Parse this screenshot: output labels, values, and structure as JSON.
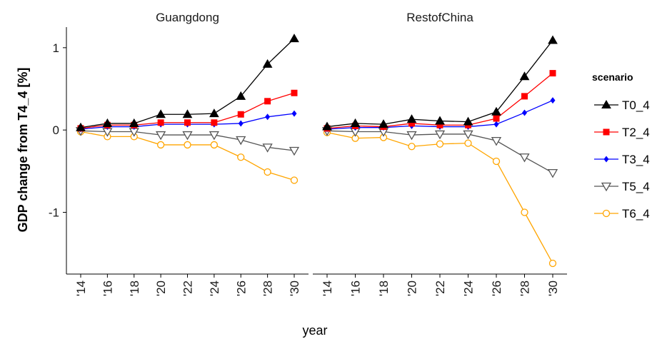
{
  "chart_data": {
    "type": "line",
    "xlabel": "year",
    "ylabel": "GDP change from T4_4 [%]",
    "ylim": [
      -1.75,
      1.25
    ],
    "yticks": [
      -1,
      0,
      1
    ],
    "x": [
      "'14",
      "'16",
      "'18",
      "'20",
      "'22",
      "'24",
      "'26",
      "'28",
      "'30"
    ],
    "legend_title": "scenario",
    "legend_position": "right",
    "grid": false,
    "series_style": [
      {
        "name": "T0_4",
        "color": "#000000",
        "marker": "triangle-filled"
      },
      {
        "name": "T2_4",
        "color": "#ff0000",
        "marker": "square-filled"
      },
      {
        "name": "T3_4",
        "color": "#0000ff",
        "marker": "diamond-filled"
      },
      {
        "name": "T5_4",
        "color": "#555555",
        "marker": "triangle-down-open"
      },
      {
        "name": "T6_4",
        "color": "#ffa500",
        "marker": "circle-open"
      }
    ],
    "facets": [
      {
        "title": "Guangdong",
        "series": [
          {
            "name": "T0_4",
            "values": [
              0.03,
              0.08,
              0.08,
              0.19,
              0.19,
              0.2,
              0.41,
              0.8,
              1.11
            ]
          },
          {
            "name": "T2_4",
            "values": [
              0.02,
              0.06,
              0.06,
              0.09,
              0.09,
              0.09,
              0.19,
              0.35,
              0.45
            ]
          },
          {
            "name": "T3_4",
            "values": [
              0.01,
              0.04,
              0.04,
              0.07,
              0.07,
              0.07,
              0.08,
              0.16,
              0.2
            ]
          },
          {
            "name": "T5_4",
            "values": [
              -0.01,
              -0.02,
              -0.02,
              -0.06,
              -0.06,
              -0.06,
              -0.12,
              -0.21,
              -0.25
            ]
          },
          {
            "name": "T6_4",
            "values": [
              -0.02,
              -0.08,
              -0.08,
              -0.18,
              -0.18,
              -0.18,
              -0.33,
              -0.51,
              -0.61
            ]
          }
        ]
      },
      {
        "title": "RestofChina",
        "series": [
          {
            "name": "T0_4",
            "values": [
              0.04,
              0.08,
              0.07,
              0.13,
              0.11,
              0.1,
              0.22,
              0.65,
              1.09
            ]
          },
          {
            "name": "T2_4",
            "values": [
              0.02,
              0.05,
              0.04,
              0.08,
              0.06,
              0.06,
              0.14,
              0.41,
              0.69
            ]
          },
          {
            "name": "T3_4",
            "values": [
              0.01,
              0.03,
              0.03,
              0.05,
              0.04,
              0.04,
              0.07,
              0.21,
              0.36
            ]
          },
          {
            "name": "T5_4",
            "values": [
              -0.01,
              -0.02,
              -0.02,
              -0.06,
              -0.05,
              -0.05,
              -0.13,
              -0.33,
              -0.52
            ]
          },
          {
            "name": "T6_4",
            "values": [
              -0.03,
              -0.1,
              -0.09,
              -0.2,
              -0.17,
              -0.16,
              -0.38,
              -1.0,
              -1.62
            ]
          }
        ]
      }
    ]
  }
}
